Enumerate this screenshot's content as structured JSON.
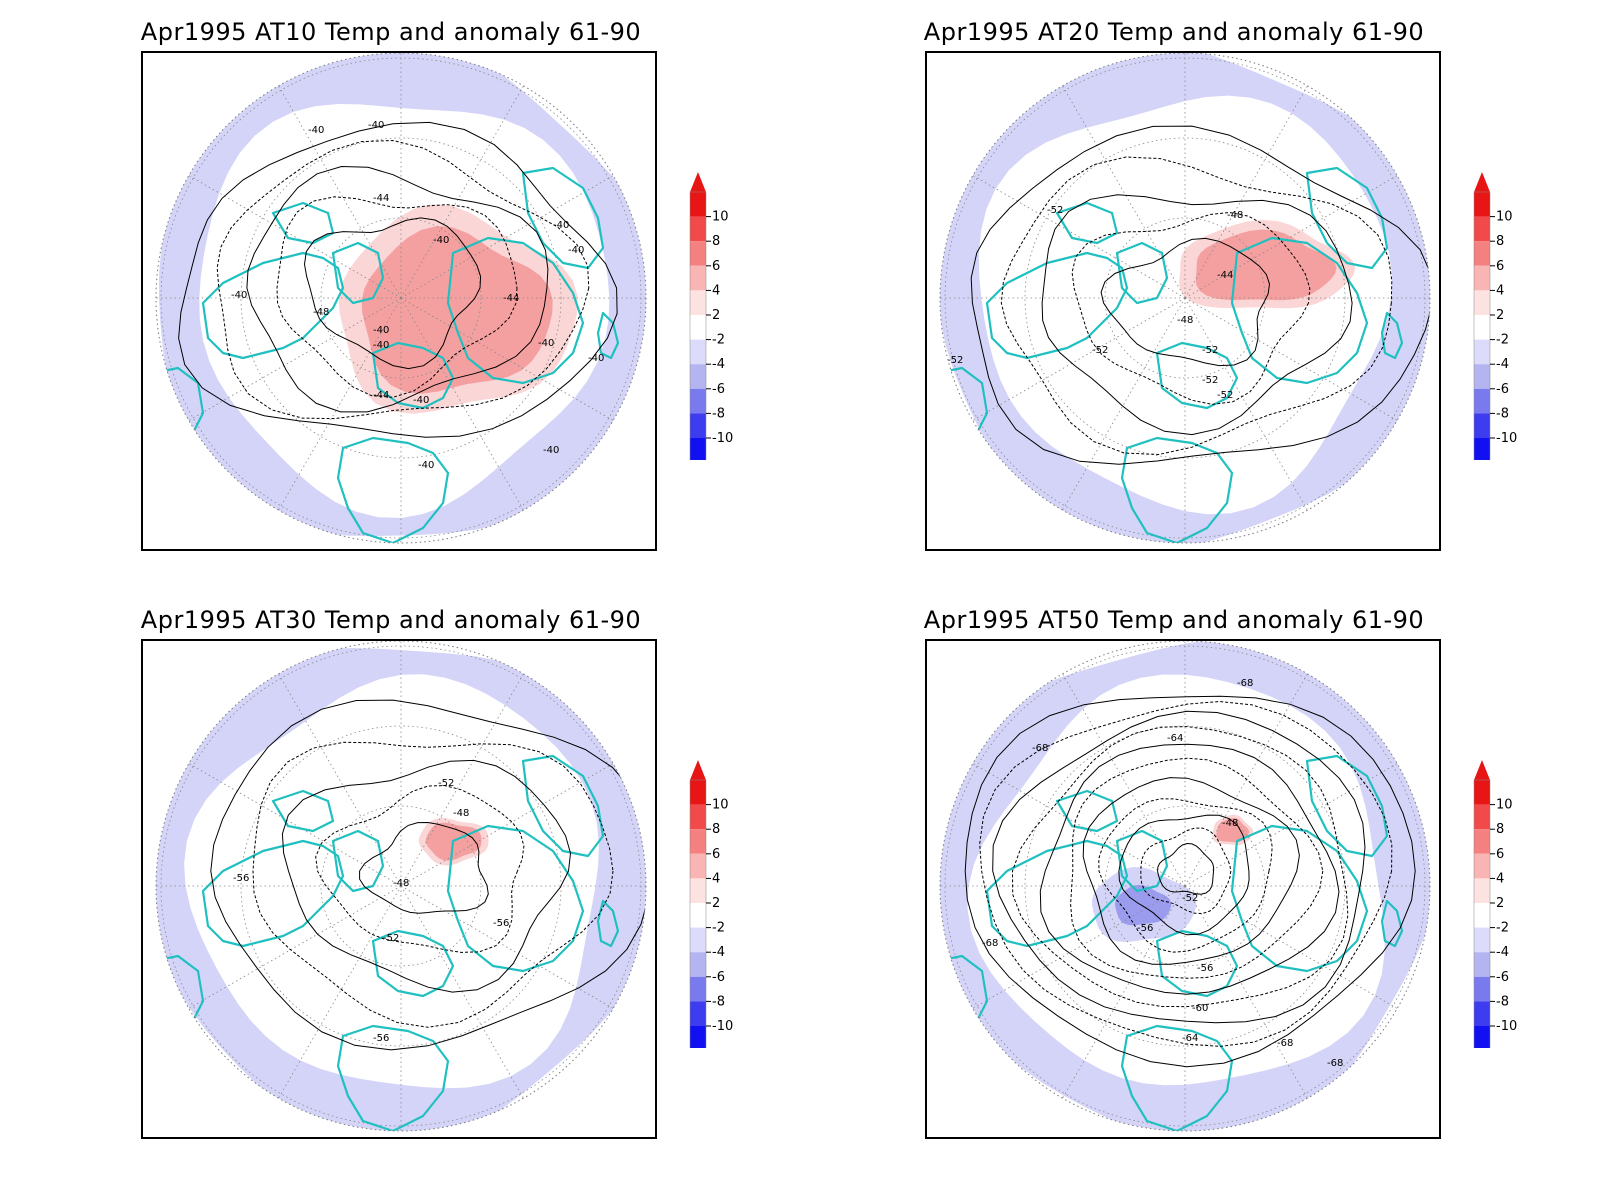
{
  "panels": [
    {
      "title": "Apr1995 AT10 Temp and anomaly 61-90",
      "contour_labels": [
        "-40",
        "-40",
        "-44",
        "-40",
        "-40",
        "-40",
        "-40",
        "-48",
        "-40",
        "-44",
        "-40",
        "-40",
        "-44",
        "-40",
        "-40",
        "-40",
        "-40"
      ],
      "anomaly_regions": [
        "warm-central",
        "cool-ring"
      ]
    },
    {
      "title": "Apr1995 AT20 Temp and anomaly 61-90",
      "contour_labels": [
        "-52",
        "-48",
        "-44",
        "-48",
        "-52",
        "-52",
        "-52",
        "-52",
        "-52"
      ],
      "anomaly_regions": [
        "warm-small",
        "cool-ring"
      ]
    },
    {
      "title": "Apr1995 AT30 Temp and anomaly 61-90",
      "contour_labels": [
        "-52",
        "-48",
        "-56",
        "-48",
        "-52",
        "-56",
        "-56"
      ],
      "anomaly_regions": [
        "warm-small",
        "cool-ring"
      ]
    },
    {
      "title": "Apr1995 AT50 Temp and anomaly 61-90",
      "contour_labels": [
        "-68",
        "-68",
        "-64",
        "-48",
        "-52",
        "-56",
        "-56",
        "-60",
        "-64",
        "-68",
        "-68",
        "-68"
      ],
      "anomaly_regions": [
        "cool-central",
        "cool-ring"
      ]
    }
  ],
  "colorbar": {
    "labels": [
      "10",
      "8",
      "6",
      "4",
      "2",
      "-2",
      "-4",
      "-6",
      "-8",
      "-10"
    ],
    "colors": [
      "#e81515",
      "#f04a4a",
      "#f58080",
      "#f9b4b4",
      "#fde2e2",
      "#ffffff",
      "#dcdcfa",
      "#b4b4f0",
      "#7a7aef",
      "#3d3def",
      "#1010f0"
    ]
  },
  "style": {
    "coast_color": "#20c0c0",
    "contour_color": "#000000",
    "warm_fill": "#f5a0a0",
    "cool_fill": "#d4d4f8"
  }
}
